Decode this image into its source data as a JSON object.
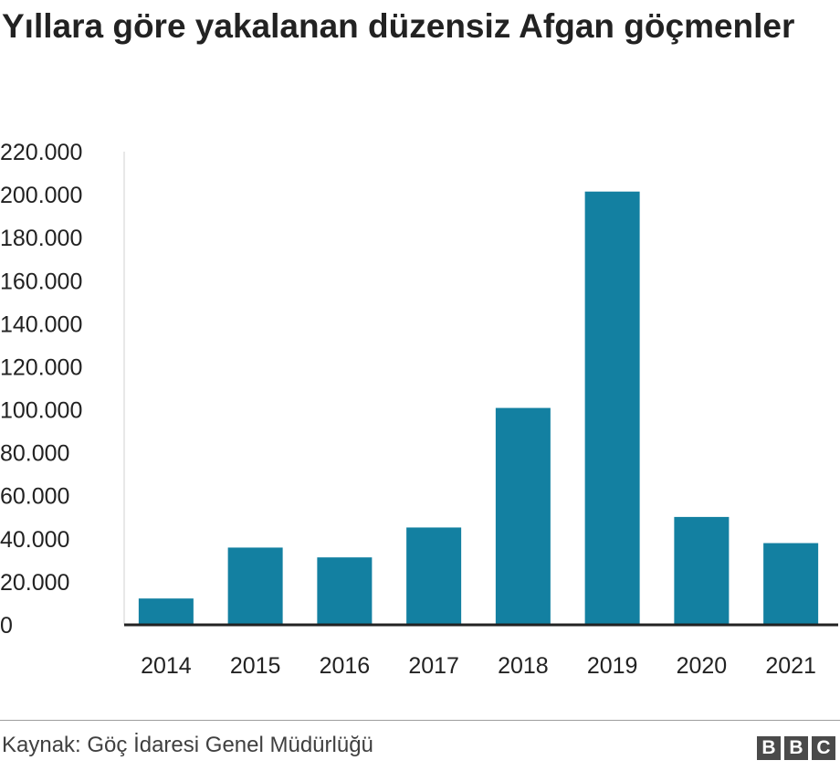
{
  "chart_data": {
    "type": "bar",
    "title": "Yıllara göre yakalanan düzensiz Afgan göçmenler",
    "categories": [
      "2014",
      "2015",
      "2016",
      "2017",
      "2018",
      "2019",
      "2020",
      "2021"
    ],
    "values": [
      12248,
      35921,
      31360,
      45259,
      100841,
      201437,
      50161,
      38000
    ],
    "ylim": [
      0,
      220000
    ],
    "yticks": [
      0,
      20000,
      40000,
      60000,
      80000,
      100000,
      120000,
      140000,
      160000,
      180000,
      200000,
      220000
    ],
    "ytick_labels": [
      "0",
      "20.000",
      "40.000",
      "60.000",
      "80.000",
      "100.000",
      "120.000",
      "140.000",
      "160.000",
      "180.000",
      "200.000",
      "220.000"
    ],
    "xlabel": "",
    "ylabel": "",
    "grid": false,
    "bar_color": "#1380a1"
  },
  "footer": {
    "source": "Kaynak: Göç İdaresi Genel Müdürlüğü",
    "logo_letters": [
      "B",
      "B",
      "C"
    ]
  }
}
